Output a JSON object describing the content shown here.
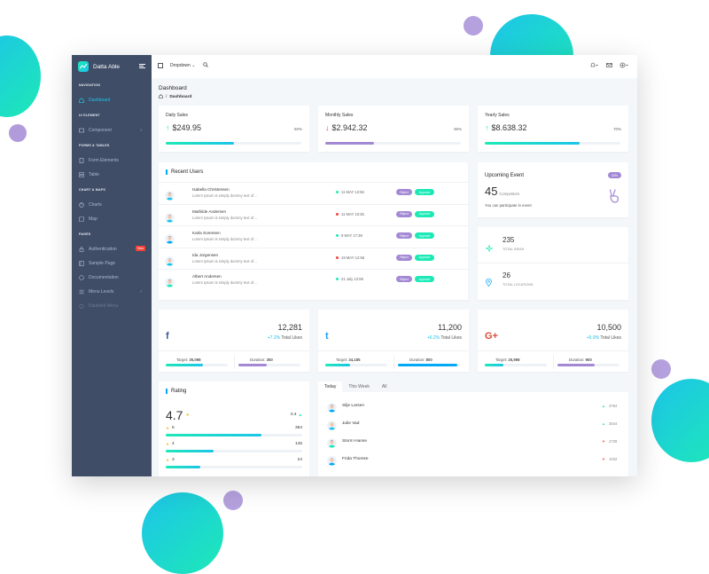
{
  "colors": {
    "teal": "#1de9b6",
    "cyan": "#1dc4e9",
    "purple": "#a389d4",
    "blue": "#04a9f5",
    "red": "#f44236",
    "green": "#1de9b6",
    "sidebar": "#3f4d67"
  },
  "brand": {
    "name": "Datta Able",
    "logo_icon": "trending-up-icon"
  },
  "nav": {
    "cap_navigation": "NAVIGATION",
    "dashboard": "Dashboard",
    "cap_ui": "UI ELEMENT",
    "component": "Component",
    "cap_forms": "FORMS & TABLES",
    "form_elements": "Form Elements",
    "table": "Table",
    "cap_charts": "CHART & MAPS",
    "charts": "Charts",
    "map": "Map",
    "cap_pages": "PAGES",
    "authentication": "Authentication",
    "new_badge": "New",
    "sample_page": "Sample Page",
    "documentation": "Documentation",
    "menu_levels": "Menu Levels",
    "disabled_menu": "Disabled Menu"
  },
  "header": {
    "dropdown": "Dropdown"
  },
  "page": {
    "title": "Dashboard",
    "crumb": "Dashboard"
  },
  "stats": [
    {
      "title": "Daily Sales",
      "value": "$249.95",
      "pct": "50%",
      "progress": 0.5,
      "trend": "up"
    },
    {
      "title": "Monthly Sales",
      "value": "$2.942.32",
      "pct": "36%",
      "progress": 0.36,
      "trend": "down"
    },
    {
      "title": "Yearly Sales",
      "value": "$8.638.32",
      "pct": "70%",
      "progress": 0.7,
      "trend": "up"
    }
  ],
  "recent_users": {
    "title": "Recent Users",
    "reject": "Reject",
    "approve": "Approve",
    "rows": [
      {
        "name": "Isabella Christensen",
        "desc": "Lorem Ipsum is simply dummy text of…",
        "date": "11 MAY 12:56",
        "status": "green"
      },
      {
        "name": "Mathilde Andersen",
        "desc": "Lorem Ipsum is simply dummy text of…",
        "date": "11 MAY 10:35",
        "status": "red"
      },
      {
        "name": "Karla Sorensen",
        "desc": "Lorem Ipsum is simply dummy text of…",
        "date": "9 MAY 17:38",
        "status": "green"
      },
      {
        "name": "Ida Jorgensen",
        "desc": "Lorem Ipsum is simply dummy text of…",
        "date": "19 MAY 12:56",
        "status": "red"
      },
      {
        "name": "Albert Andersen",
        "desc": "Lorem Ipsum is simply dummy text of…",
        "date": "21 July 12:56",
        "status": "green"
      }
    ]
  },
  "event": {
    "title": "Upcoming Event",
    "badge": "34%",
    "count": "45",
    "competitors": "Competitors",
    "note": "You can participate in event"
  },
  "ideas": {
    "value": "235",
    "label": "TOTAL IDEAS"
  },
  "locations": {
    "value": "26",
    "label": "TOTAL LOCATIONS"
  },
  "social": [
    {
      "icon": "f",
      "icon_name": "facebook-icon",
      "value": "12,281",
      "change": "+7.2%",
      "likes": "Total Likes",
      "target_label": "Target:",
      "target": "35,098",
      "duration_label": "Duration:",
      "duration": "350",
      "target_progress": 0.6,
      "duration_progress": 0.45
    },
    {
      "icon": "t",
      "icon_name": "twitter-icon",
      "value": "11,200",
      "change": "+6.2%",
      "likes": "Total Likes",
      "target_label": "Target:",
      "target": "34,185",
      "duration_label": "Duration:",
      "duration": "800",
      "target_progress": 0.4,
      "duration_progress": 0.95
    },
    {
      "icon": "G+",
      "icon_name": "google-plus-icon",
      "value": "10,500",
      "change": "+5.9%",
      "likes": "Total Likes",
      "target_label": "Target:",
      "target": "25,998",
      "duration_label": "Duration:",
      "duration": "900",
      "target_progress": 0.3,
      "duration_progress": 0.6
    }
  ],
  "rating": {
    "title": "Rating",
    "value": "4.7",
    "side": "0.4",
    "rows": [
      {
        "stars": "5",
        "count": "384",
        "progress": 0.7
      },
      {
        "stars": "4",
        "count": "145",
        "progress": 0.35
      },
      {
        "stars": "3",
        "count": "24",
        "progress": 0.25
      }
    ]
  },
  "tabs": {
    "today": "Today",
    "week": "This Week",
    "all": "All"
  },
  "activity": [
    {
      "name": "Silje Larsen",
      "value": "3784",
      "trend": "up"
    },
    {
      "name": "Julie Vad",
      "value": "3544",
      "trend": "up"
    },
    {
      "name": "Storm Hanse",
      "value": "2739",
      "trend": "down"
    },
    {
      "name": "Frida Thomse",
      "value": "1032",
      "trend": "down"
    }
  ]
}
